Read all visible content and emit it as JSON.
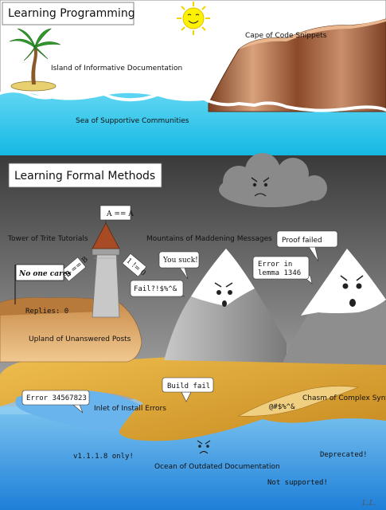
{
  "top_panel": {
    "title": "Learning Programming",
    "island_label": "Island of Informative Documentation",
    "cape_label": "Cape of Code Snippets",
    "sea_label": "Sea of Supportive Communities"
  },
  "bottom_panel": {
    "title": "Learning Formal Methods",
    "tower_label": "Tower of Trite Tutorials",
    "tower_flag": "A == A",
    "tower_sign_left": "B == B",
    "tower_sign_right": "1 != 0",
    "mountains_label": "Mountains of Maddening Messages",
    "flag_text": "No one cares",
    "replies_label": "Replies: 0",
    "upland_label": "Upland of Unanswered Posts",
    "bubble_you_suck": "You suck!",
    "bubble_fail": "Fail?!$%^&",
    "bubble_proof_failed": "Proof failed",
    "bubble_error_lemma_line1": "Error in",
    "bubble_error_lemma_line2": "lemma 1346",
    "bubble_build_fail": "Build fail",
    "bubble_error_number": "Error 34567823",
    "inlet_label": "Inlet of Install Errors",
    "chasm_label": "Chasm of Complex Syntax",
    "chasm_swear": "@#$%^&",
    "version_text": "v1.1.1.8 only!",
    "ocean_label": "Ocean of Outdated Documentation",
    "deprecated_text": "Deprecated!",
    "not_supported_text": "Not supported!",
    "signature": "L.L."
  },
  "colors": {
    "sky": "#ffffff",
    "sea": "#29c8ec",
    "sand": "#d9a850",
    "cliff": "#9a5a36",
    "mountain": "#a9a9a9",
    "ocean": "#3aa8e8",
    "storm_sky": "#8a8a8a"
  }
}
